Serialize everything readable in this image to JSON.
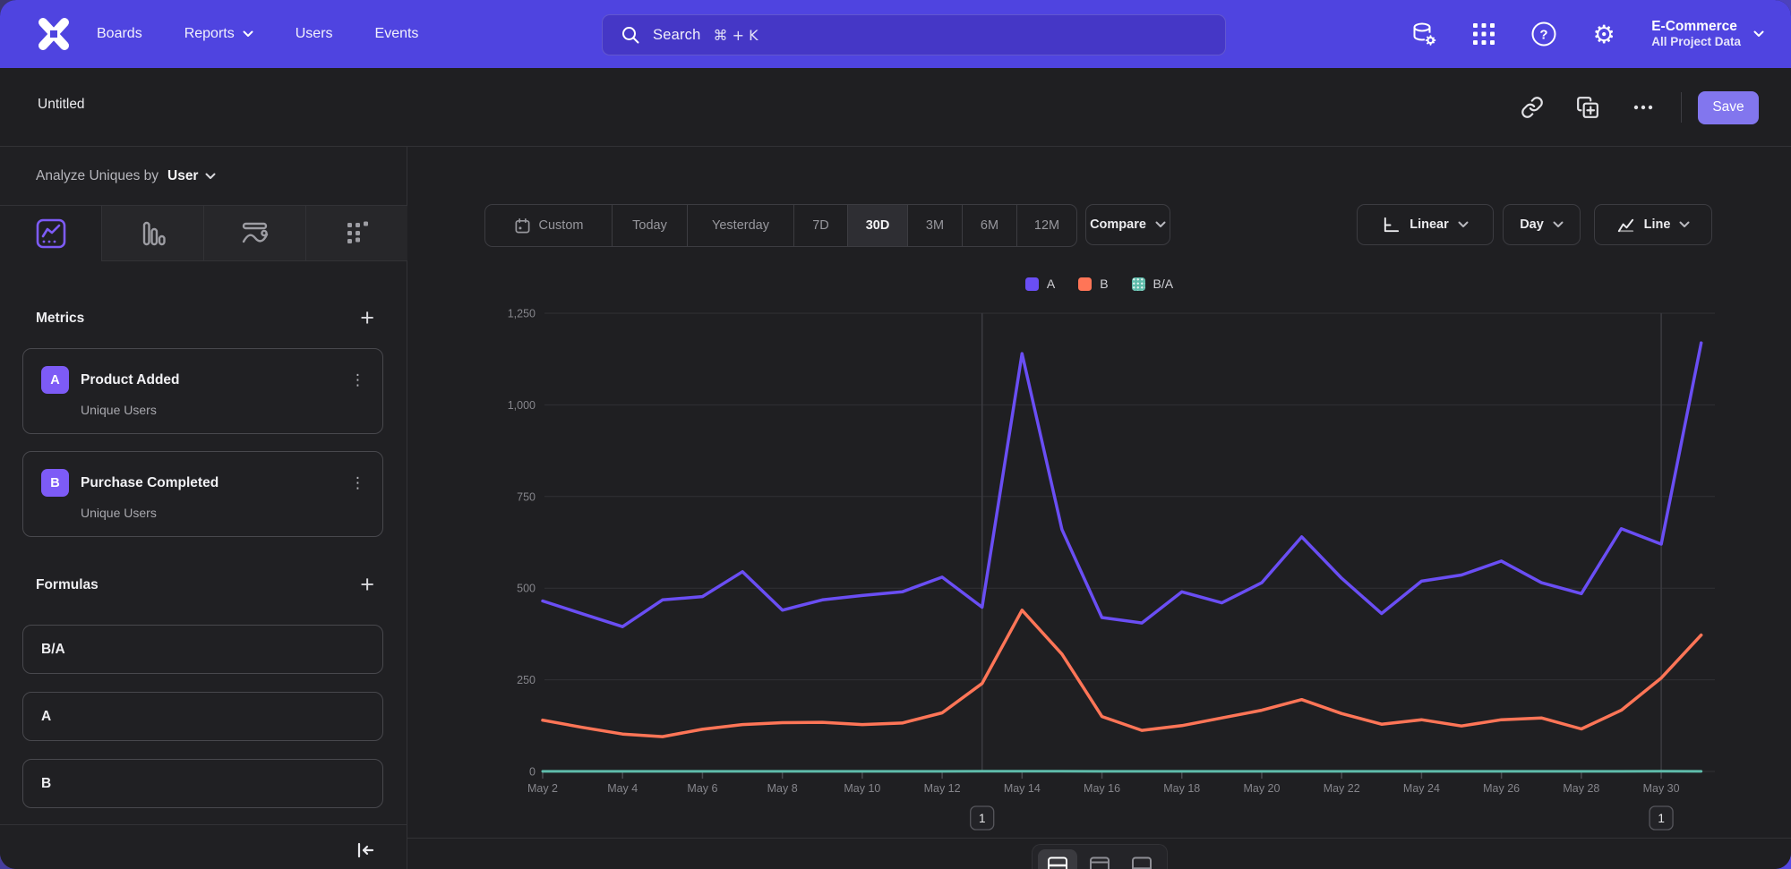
{
  "nav": {
    "brand": "Mixpanel",
    "items": [
      {
        "label": "Boards",
        "has_dropdown": false
      },
      {
        "label": "Reports",
        "has_dropdown": true
      },
      {
        "label": "Users",
        "has_dropdown": false
      },
      {
        "label": "Events",
        "has_dropdown": false
      }
    ],
    "search": {
      "label": "Search",
      "shortcut": "⌘ + K"
    },
    "icons": [
      "data-management-icon",
      "apps-grid-icon",
      "help-icon",
      "settings-gear-icon"
    ],
    "project": {
      "name": "E-Commerce",
      "scope": "All Project Data"
    }
  },
  "report_header": {
    "title": "Untitled",
    "actions": [
      "copy-link-icon",
      "duplicate-icon",
      "more-ellipsis-icon"
    ],
    "save_label": "Save"
  },
  "sidebar": {
    "analyze": {
      "prefix": "Analyze Uniques by",
      "value": "User"
    },
    "chart_type_tabs": [
      "insights-line",
      "bar",
      "flow",
      "metric-grid"
    ],
    "active_tab": "insights-line",
    "metrics": {
      "title": "Metrics",
      "add_label": "+",
      "items": [
        {
          "badge": "A",
          "name": "Product Added",
          "subtitle": "Unique Users"
        },
        {
          "badge": "B",
          "name": "Purchase Completed",
          "subtitle": "Unique Users"
        }
      ]
    },
    "formulas": {
      "title": "Formulas",
      "add_label": "+",
      "items": [
        "B/A",
        "A",
        "B"
      ]
    }
  },
  "toolbar": {
    "ranges": [
      "Custom",
      "Today",
      "Yesterday",
      "7D",
      "30D",
      "3M",
      "6M",
      "12M"
    ],
    "selected_range": "30D",
    "compare_label": "Compare",
    "scale_label": "Linear",
    "interval_label": "Day",
    "chart_type_label": "Line"
  },
  "colors": {
    "navbar": "#4f44e0",
    "accent_purple": "#7d5bf6",
    "series_a": "#6a4ef4",
    "series_b": "#ff7557",
    "series_ba": "#5fbcab",
    "save_button": "#8276ee",
    "background": "#1f1f22"
  },
  "chart_data": {
    "type": "line",
    "title": "",
    "xlabel": "",
    "ylabel": "",
    "ylim": [
      0,
      1250
    ],
    "yticks": [
      0,
      250,
      500,
      750,
      1000,
      1250
    ],
    "ytick_labels": [
      "0",
      "250",
      "500",
      "750",
      "1,000",
      "1,250"
    ],
    "grid": "horizontal",
    "legend_position": "top-center",
    "x": [
      "May 2",
      "May 3",
      "May 4",
      "May 5",
      "May 6",
      "May 7",
      "May 8",
      "May 9",
      "May 10",
      "May 11",
      "May 12",
      "May 13",
      "May 14",
      "May 15",
      "May 16",
      "May 17",
      "May 18",
      "May 19",
      "May 20",
      "May 21",
      "May 22",
      "May 23",
      "May 24",
      "May 25",
      "May 26",
      "May 27",
      "May 28",
      "May 29",
      "May 30",
      "May 31"
    ],
    "x_labels_shown": [
      "May 2",
      "May 4",
      "May 6",
      "May 8",
      "May 10",
      "May 12",
      "May 14",
      "May 16",
      "May 18",
      "May 20",
      "May 22",
      "May 24",
      "May 26",
      "May 28",
      "May 30"
    ],
    "series": [
      {
        "name": "A",
        "metric": "Product Added — Unique Users",
        "color": "#6a4ef4",
        "values": [
          465,
          430,
          395,
          468,
          477,
          545,
          440,
          468,
          480,
          490,
          530,
          448,
          1140,
          660,
          420,
          405,
          490,
          460,
          515,
          640,
          527,
          431,
          519,
          536,
          574,
          515,
          485,
          662,
          620,
          1169
        ]
      },
      {
        "name": "B",
        "metric": "Purchase Completed — Unique Users",
        "color": "#ff7557",
        "values": [
          140,
          120,
          102,
          95,
          115,
          128,
          133,
          134,
          128,
          132,
          160,
          240,
          440,
          320,
          150,
          112,
          125,
          146,
          167,
          196,
          158,
          129,
          141,
          124,
          141,
          146,
          116,
          167,
          255,
          372
        ]
      },
      {
        "name": "B/A",
        "metric": "Formula B/A",
        "color": "#5fbcab",
        "values": [
          0.3,
          0.28,
          0.26,
          0.2,
          0.24,
          0.23,
          0.3,
          0.29,
          0.27,
          0.27,
          0.3,
          0.54,
          0.39,
          0.48,
          0.36,
          0.28,
          0.26,
          0.32,
          0.32,
          0.31,
          0.3,
          0.3,
          0.27,
          0.23,
          0.25,
          0.28,
          0.24,
          0.25,
          0.41,
          0.32
        ]
      }
    ],
    "annotations": [
      {
        "label": "1",
        "x": "May 13"
      },
      {
        "label": "1",
        "x": "May 30"
      }
    ]
  }
}
